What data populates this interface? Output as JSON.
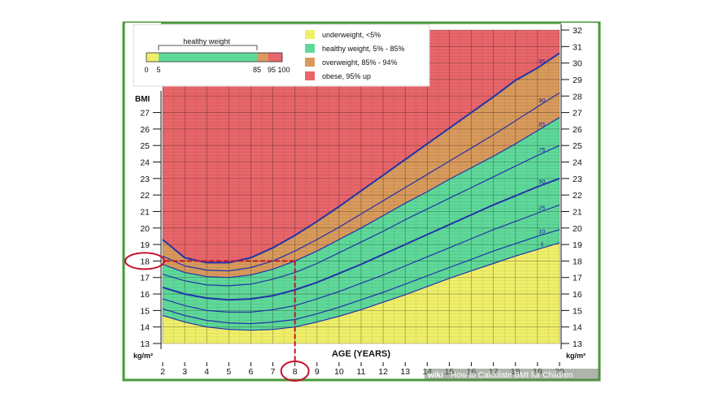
{
  "chart_data": {
    "type": "line",
    "xlabel": "AGE (YEARS)",
    "ylabel": "BMI",
    "y_unit": "kg/m²",
    "xlim": [
      2,
      20
    ],
    "ylim": [
      13,
      32
    ],
    "x_ticks": [
      2,
      3,
      4,
      5,
      6,
      7,
      8,
      9,
      10,
      11,
      12,
      13,
      14,
      15,
      16,
      17,
      18,
      19,
      20
    ],
    "y_ticks_left": [
      13,
      14,
      15,
      16,
      17,
      18,
      19,
      20,
      21,
      22,
      23,
      24,
      25,
      26,
      27
    ],
    "y_ticks_right": [
      13,
      14,
      15,
      16,
      17,
      18,
      19,
      20,
      21,
      22,
      23,
      24,
      25,
      26,
      27,
      28,
      29,
      30,
      31,
      32
    ],
    "grid": true,
    "x": [
      2,
      3,
      4,
      5,
      6,
      7,
      8,
      9,
      10,
      11,
      12,
      13,
      14,
      15,
      16,
      17,
      18,
      19,
      20
    ],
    "series": [
      {
        "name": "5",
        "values": [
          14.7,
          14.3,
          14.0,
          13.85,
          13.8,
          13.85,
          14.0,
          14.3,
          14.65,
          15.05,
          15.5,
          15.95,
          16.45,
          16.95,
          17.4,
          17.85,
          18.3,
          18.7,
          19.1
        ]
      },
      {
        "name": "10",
        "values": [
          15.1,
          14.7,
          14.4,
          14.25,
          14.2,
          14.3,
          14.45,
          14.8,
          15.2,
          15.65,
          16.1,
          16.6,
          17.1,
          17.6,
          18.1,
          18.6,
          19.05,
          19.5,
          19.9
        ]
      },
      {
        "name": "25",
        "values": [
          15.7,
          15.3,
          15.0,
          14.9,
          14.9,
          15.05,
          15.3,
          15.7,
          16.15,
          16.65,
          17.15,
          17.7,
          18.25,
          18.8,
          19.35,
          19.9,
          20.4,
          20.9,
          21.4
        ]
      },
      {
        "name": "50",
        "values": [
          16.4,
          16.0,
          15.75,
          15.65,
          15.7,
          15.9,
          16.25,
          16.7,
          17.25,
          17.8,
          18.4,
          19.0,
          19.6,
          20.2,
          20.8,
          21.4,
          21.95,
          22.5,
          23.0
        ]
      },
      {
        "name": "75",
        "values": [
          17.2,
          16.8,
          16.55,
          16.5,
          16.6,
          16.9,
          17.3,
          17.85,
          18.5,
          19.15,
          19.8,
          20.5,
          21.15,
          21.8,
          22.45,
          23.1,
          23.75,
          24.4,
          25.0
        ]
      },
      {
        "name": "85",
        "values": [
          17.8,
          17.3,
          17.05,
          17.0,
          17.15,
          17.5,
          18.0,
          18.6,
          19.3,
          20.0,
          20.75,
          21.5,
          22.2,
          22.95,
          23.65,
          24.35,
          25.1,
          25.9,
          26.7
        ]
      },
      {
        "name": "90",
        "values": [
          18.3,
          17.7,
          17.45,
          17.4,
          17.6,
          18.0,
          18.6,
          19.3,
          20.05,
          20.85,
          21.65,
          22.45,
          23.25,
          24.05,
          24.85,
          25.65,
          26.5,
          27.35,
          28.2
        ]
      },
      {
        "name": "95",
        "values": [
          19.3,
          18.2,
          17.9,
          17.9,
          18.2,
          18.8,
          19.55,
          20.4,
          21.3,
          22.25,
          23.2,
          24.15,
          25.1,
          26.05,
          27.0,
          27.95,
          28.95,
          29.7,
          30.6
        ]
      }
    ],
    "highlight": {
      "x": 8,
      "y": 18,
      "x_label": "8",
      "y_label": "18"
    },
    "legend": {
      "placement": "top-left",
      "title": "healthy weight",
      "scale_labels": [
        "0",
        "5",
        "85",
        "95",
        "100"
      ],
      "items": [
        {
          "label": "underweight, <5%",
          "color": "#f0ef6a"
        },
        {
          "label": "healthy weight, 5% - 85%",
          "color": "#5fd99a"
        },
        {
          "label": "overweight, 85% - 94%",
          "color": "#d99a5c"
        },
        {
          "label": "obese, 95% up",
          "color": "#e8666a"
        }
      ]
    },
    "colors": {
      "underweight": "#f0ef6a",
      "healthy": "#5fd99a",
      "overweight": "#d99a5c",
      "obese": "#e8666a",
      "line": "#2233aa",
      "highlight": "#c8102e"
    }
  },
  "watermark": {
    "brand": "wiki",
    "text": "How to Calculate BMI for Children"
  }
}
